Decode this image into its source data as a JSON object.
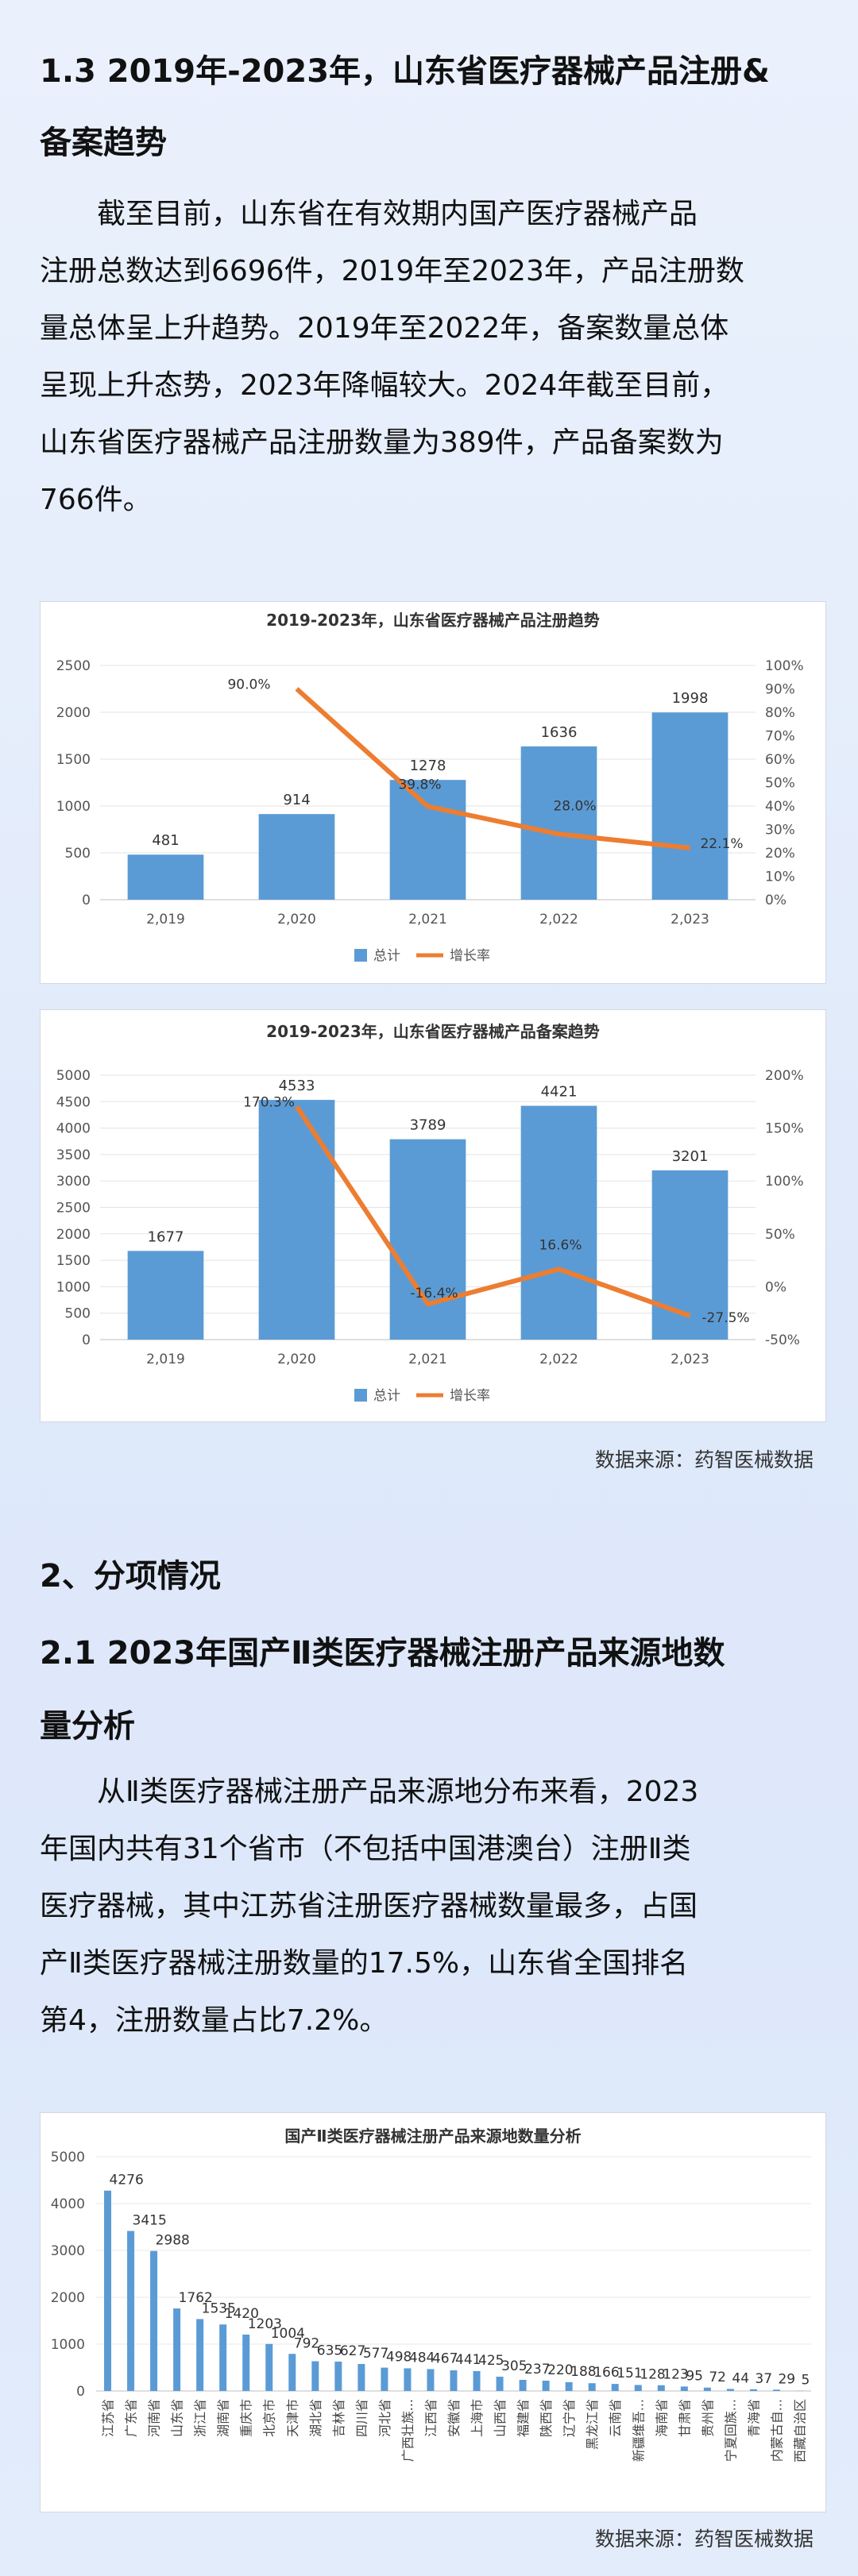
{
  "section13": {
    "title_line1": "1.3 2019年-2023年，山东省医疗器械产品注册&",
    "title_line2": "备案趋势",
    "para": [
      "截至目前，山东省在有效期内国产医疗器械产品",
      "注册总数达到6696件，2019年至2023年，产品注册数",
      "量总体呈上升趋势。2019年至2022年，备案数量总体",
      "呈现上升态势，2023年降幅较大。2024年截至目前，",
      "山东省医疗器械产品注册数量为389件，产品备案数为",
      "766件。"
    ]
  },
  "section2": {
    "title": "2、分项情况",
    "sub_line1": "2.1   2023年国产Ⅱ类医疗器械注册产品来源地数",
    "sub_line2": "量分析",
    "para": [
      "从Ⅱ类医疗器械注册产品来源地分布来看，2023",
      "年国内共有31个省市（不包括中国港澳台）注册Ⅱ类",
      "医疗器械，其中江苏省注册医疗器械数量最多，占国",
      "产Ⅱ类医疗器械注册数量的17.5%，山东省全国排名",
      "第4，注册数量占比7.2%。"
    ]
  },
  "source_text": "数据来源：药智医械数据",
  "chart_data": [
    {
      "type": "bar",
      "title": "2019-2023年，山东省医疗器械产品注册趋势",
      "categories": [
        "2,019",
        "2,020",
        "2,021",
        "2,022",
        "2,023"
      ],
      "series": [
        {
          "name": "总计",
          "type": "bar",
          "values": [
            481,
            914,
            1278,
            1636,
            1998
          ],
          "color": "#5b9bd5"
        },
        {
          "name": "增长率",
          "type": "line",
          "axis": "right",
          "values": [
            null,
            90.0,
            39.8,
            28.0,
            22.1
          ],
          "labels": [
            "",
            "90.0%",
            "39.8%",
            "28.0%",
            "22.1%"
          ],
          "color": "#ed7d31"
        }
      ],
      "ylim": [
        0,
        2500
      ],
      "y_ticks": [
        0,
        500,
        1000,
        1500,
        2000,
        2500
      ],
      "y2lim": [
        0,
        100
      ],
      "y2_ticks": [
        "0%",
        "10%",
        "20%",
        "30%",
        "40%",
        "50%",
        "60%",
        "70%",
        "80%",
        "90%",
        "100%"
      ],
      "legend": "bottom"
    },
    {
      "type": "bar",
      "title": "2019-2023年，山东省医疗器械产品备案趋势",
      "categories": [
        "2,019",
        "2,020",
        "2,021",
        "2,022",
        "2,023"
      ],
      "series": [
        {
          "name": "总计",
          "type": "bar",
          "values": [
            1677,
            4533,
            3789,
            4421,
            3201
          ],
          "color": "#5b9bd5"
        },
        {
          "name": "增长率",
          "type": "line",
          "axis": "right",
          "values": [
            null,
            170.3,
            -16.4,
            16.6,
            -27.5
          ],
          "labels": [
            "",
            "170.3%",
            "-16.4%",
            "16.6%",
            "-27.5%"
          ],
          "color": "#ed7d31"
        }
      ],
      "ylim": [
        0,
        5000
      ],
      "y_ticks": [
        0,
        500,
        1000,
        1500,
        2000,
        2500,
        3000,
        3500,
        4000,
        4500,
        5000
      ],
      "y2lim": [
        -50,
        200
      ],
      "y2_ticks": [
        "-50%",
        "0%",
        "50%",
        "100%",
        "150%",
        "200%"
      ],
      "legend": "bottom"
    },
    {
      "type": "bar",
      "title": "国产Ⅱ类医疗器械注册产品来源地数量分析",
      "categories": [
        "江苏省",
        "广东省",
        "河南省",
        "山东省",
        "浙江省",
        "湖南省",
        "重庆市",
        "北京市",
        "天津市",
        "湖北省",
        "吉林省",
        "四川省",
        "河北省",
        "广西壮族...",
        "江西省",
        "安徽省",
        "上海市",
        "山西省",
        "福建省",
        "陕西省",
        "辽宁省",
        "黑龙江省",
        "云南省",
        "新疆维吾...",
        "海南省",
        "甘肃省",
        "贵州省",
        "宁夏回族...",
        "青海省",
        "内蒙古自...",
        "西藏自治区"
      ],
      "values": [
        4276,
        3415,
        2988,
        1762,
        1535,
        1420,
        1203,
        1004,
        792,
        635,
        627,
        577,
        498,
        484,
        467,
        441,
        425,
        305,
        237,
        220,
        188,
        166,
        151,
        128,
        123,
        95,
        72,
        44,
        37,
        29,
        5
      ],
      "ylim": [
        0,
        5000
      ],
      "y_ticks": [
        0,
        1000,
        2000,
        3000,
        4000,
        5000
      ],
      "color": "#5b9bd5"
    }
  ]
}
